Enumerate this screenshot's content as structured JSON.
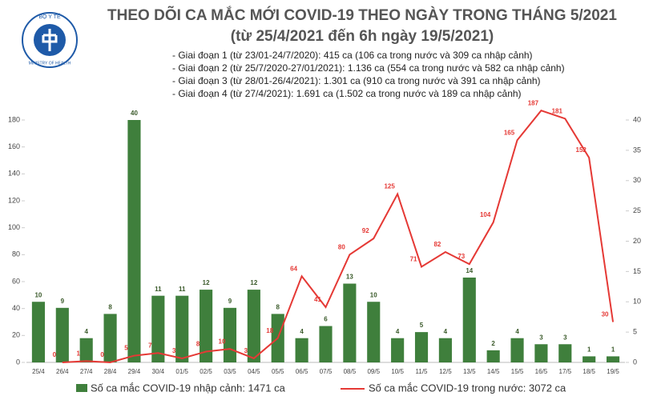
{
  "logo_text": "BỘ Y TẾ",
  "logo_subtext": "MINISTRY OF HEALTH",
  "chart_data": {
    "type": "bar-line",
    "title": "THEO DÕI CA MẮC MỚI COVID-19 THEO NGÀY TRONG THÁNG 5/2021",
    "subtitle": "(từ 25/4/2021 đến 6h ngày 19/5/2021)",
    "annotations": [
      "- Giai đoạn 1 (từ 23/01-24/7/2020): 415 ca (106 ca trong nước và 309 ca nhập cảnh)",
      "- Giai đoạn 2 (từ 25/7/2020-27/01/2021): 1.136 ca (554 ca trong nước và 582 ca nhập cảnh)",
      "- Giai đoạn 3 (từ 28/01-26/4/2021): 1.301 ca (910 ca trong nước và 391 ca nhập cảnh)",
      "- Giai đoạn 4 (từ 27/4/2021): 1.691 ca (1.502 ca trong nước và 189 ca nhập cảnh)"
    ],
    "categories": [
      "25/4",
      "26/4",
      "27/4",
      "28/4",
      "29/4",
      "30/4",
      "01/5",
      "02/5",
      "03/5",
      "04/5",
      "05/5",
      "06/5",
      "07/5",
      "08/5",
      "09/5",
      "10/5",
      "11/5",
      "12/5",
      "13/5",
      "14/5",
      "15/5",
      "16/5",
      "17/5",
      "18/5",
      "19/5"
    ],
    "series": [
      {
        "name": "Số ca mắc COVID-19 nhập cảnh: 1471 ca",
        "type": "bar",
        "axis": "y2",
        "color": "#3f7f3c",
        "values": [
          10,
          9,
          4,
          8,
          40,
          11,
          11,
          12,
          9,
          12,
          8,
          4,
          6,
          13,
          10,
          4,
          5,
          4,
          14,
          2,
          4,
          3,
          3,
          1,
          1
        ]
      },
      {
        "name": "Số ca mắc COVID-19 trong nước: 3072 ca",
        "type": "line",
        "color": "#e53935",
        "values": [
          null,
          0,
          1,
          0,
          5,
          7,
          3,
          8,
          10,
          3,
          18,
          64,
          41,
          80,
          92,
          125,
          71,
          82,
          73,
          104,
          165,
          187,
          181,
          152,
          30
        ]
      }
    ],
    "ylim": [
      0,
      180
    ],
    "yticks": [
      0,
      20,
      40,
      60,
      80,
      100,
      120,
      140,
      160,
      180
    ],
    "y2lim": [
      0,
      40
    ],
    "y2ticks": [
      0,
      5,
      10,
      15,
      20,
      25,
      30,
      35,
      40
    ]
  }
}
